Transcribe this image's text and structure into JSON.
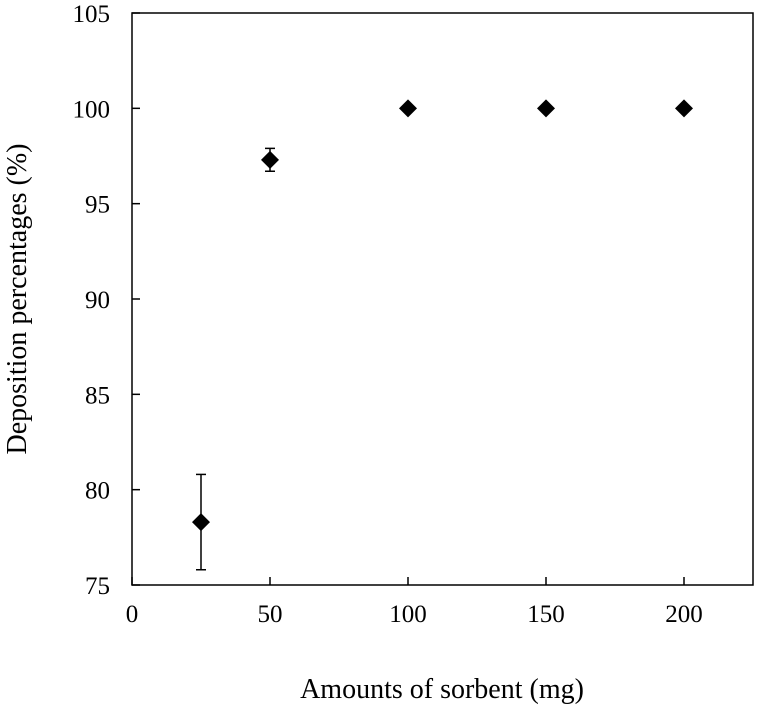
{
  "chart_data": {
    "type": "scatter",
    "title": "",
    "xlabel": "Amounts of sorbent (mg)",
    "ylabel": "Deposition percentages (%)",
    "xlim": [
      0,
      225
    ],
    "ylim": [
      75,
      105
    ],
    "xticks": [
      0,
      50,
      100,
      150,
      200
    ],
    "yticks": [
      75,
      80,
      85,
      90,
      95,
      100,
      105
    ],
    "grid": false,
    "marker": "diamond",
    "marker_color": "#000000",
    "series": [
      {
        "x": [
          25,
          50,
          100,
          150,
          200
        ],
        "y": [
          78.3,
          97.3,
          100.0,
          100.0,
          100.0
        ],
        "error": [
          2.5,
          0.6,
          0,
          0,
          0
        ]
      }
    ]
  }
}
